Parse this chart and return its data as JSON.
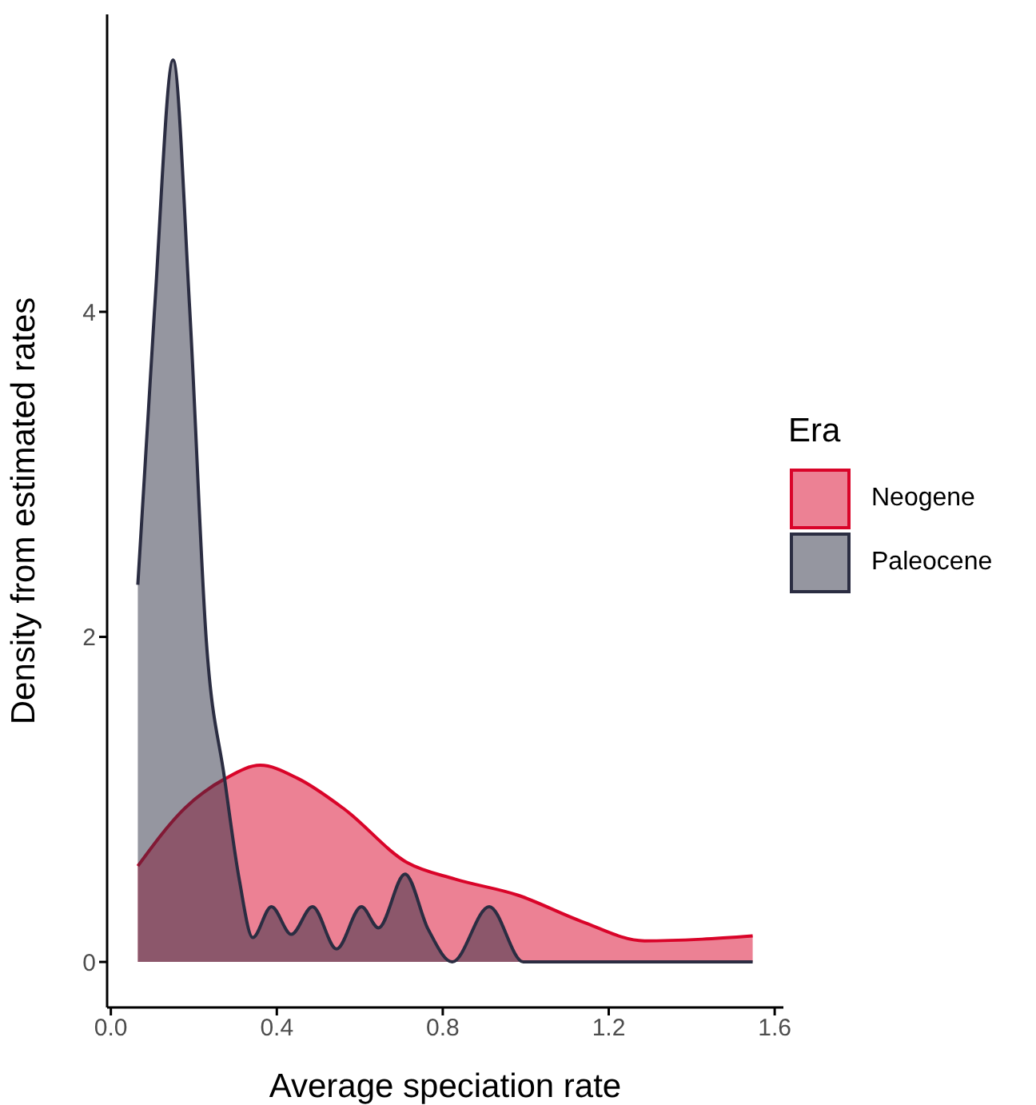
{
  "chart_data": {
    "type": "area",
    "xlabel": "Average speciation rate",
    "ylabel": "Density from estimated rates",
    "legend_title": "Era",
    "legend": "right",
    "grid": false,
    "xlim": [
      -0.009,
      1.621
    ],
    "xticks": [
      {
        "value": 0,
        "label": "0.0"
      },
      {
        "value": 0.4,
        "label": "0.4"
      },
      {
        "value": 0.8,
        "label": "0.8"
      },
      {
        "value": 1.2,
        "label": "1.2"
      },
      {
        "value": 1.6,
        "label": "1.6"
      }
    ],
    "ylim": [
      -0.28,
      5.83
    ],
    "yticks": [
      0,
      2,
      4
    ],
    "series": [
      {
        "name": "Neogene",
        "color": "#d90429",
        "x": [
          0.065,
          0.18,
          0.277,
          0.36,
          0.45,
          0.563,
          0.715,
          0.829,
          0.982,
          1.134,
          1.286,
          1.425,
          1.547
        ],
        "values": [
          0.59,
          0.95,
          1.13,
          1.21,
          1.13,
          0.94,
          0.61,
          0.51,
          0.41,
          0.25,
          0.13,
          0.14,
          0.16
        ]
      },
      {
        "name": "Paleocene",
        "color": "#2b2d42",
        "x": [
          0.065,
          0.105,
          0.15,
          0.19,
          0.23,
          0.274,
          0.31,
          0.342,
          0.387,
          0.435,
          0.486,
          0.544,
          0.604,
          0.645,
          0.709,
          0.765,
          0.823,
          0.912,
          0.994,
          1.547
        ],
        "values": [
          2.32,
          4.0,
          5.55,
          4.02,
          1.98,
          1.13,
          0.5,
          0.15,
          0.34,
          0.17,
          0.34,
          0.08,
          0.34,
          0.21,
          0.54,
          0.2,
          0.0,
          0.34,
          0.0,
          0.0
        ]
      }
    ]
  }
}
